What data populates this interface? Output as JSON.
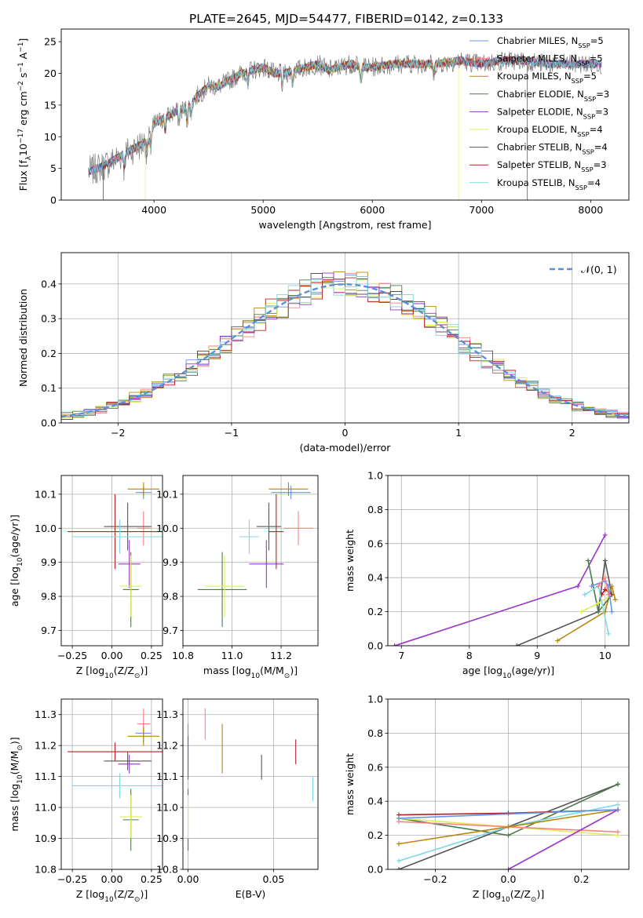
{
  "figure_title": "PLATE=2645, MJD=54477, FIBERID=0142, z=0.133",
  "colors": {
    "Chabrier MILES": "#6495ed",
    "Salpeter MILES": "#ff7f7f",
    "Kroupa MILES": "#b8860b",
    "Chabrier ELODIE": "#4a7a4a",
    "Salpeter ELODIE": "#9932cc",
    "Kroupa ELODIE": "#d9ef5a",
    "Chabrier STELIB": "#555555",
    "Salpeter STELIB": "#b22222",
    "Kroupa STELIB": "#7fd8e6",
    "gaussian": "#5b8fd6"
  },
  "chart_data": [
    {
      "type": "line",
      "title": "PLATE=2645, MJD=54477, FIBERID=0142, z=0.133",
      "xlabel": "wavelength [Angstrom, rest frame]",
      "ylabel": "Flux [f_λ 10^-17 erg cm^-2 s^-1 A^-1]",
      "xlim": [
        3150,
        8350
      ],
      "ylim": [
        0,
        27
      ],
      "xticks": [
        "4000",
        "5000",
        "6000",
        "7000",
        "8000"
      ],
      "yticks": [
        "0",
        "5",
        "10",
        "15",
        "20",
        "25"
      ],
      "legend": [
        "Chabrier MILES, N_SSP=5",
        "Salpeter MILES, N_SSP=5",
        "Kroupa MILES, N_SSP=5",
        "Chabrier ELODIE, N_SSP=3",
        "Salpeter ELODIE, N_SSP=3",
        "Kroupa ELODIE, N_SSP=4",
        "Chabrier STELIB, N_SSP=4",
        "Salpeter STELIB, N_SSP=3",
        "Kroupa STELIB, N_SSP=4"
      ],
      "legend_placement": "right",
      "continuum": {
        "x": [
          3400,
          3550,
          3650,
          3750,
          3850,
          3950,
          4000,
          4100,
          4200,
          4300,
          4400,
          4500,
          4600,
          4700,
          4800,
          4900,
          5000,
          5100,
          5200,
          5300,
          5400,
          5500,
          5600,
          5700,
          5800,
          5900,
          6000,
          6200,
          6400,
          6600,
          6800,
          7000,
          7200,
          7400,
          7600,
          7800,
          8000,
          8100
        ],
        "y": [
          4.5,
          5.5,
          6.5,
          7.5,
          8.5,
          9.5,
          12,
          13,
          14,
          14.5,
          16.5,
          18,
          18,
          19,
          20,
          20.5,
          21,
          20,
          20,
          20.5,
          21,
          21.5,
          20.5,
          21,
          21.5,
          21,
          21,
          21.5,
          21.5,
          21.5,
          22,
          21.5,
          22,
          22,
          21.5,
          21.5,
          21.5,
          21.5
        ]
      }
    },
    {
      "type": "histogram",
      "xlabel": "(data-model)/error",
      "ylabel": "Normed distribution",
      "xlim": [
        -2.5,
        2.5
      ],
      "ylim": [
        0,
        0.49
      ],
      "xticks": [
        "−2",
        "−1",
        "0",
        "1",
        "2"
      ],
      "yticks": [
        "0.0",
        "0.1",
        "0.2",
        "0.3",
        "0.4"
      ],
      "legend": [
        "N(0,1)"
      ],
      "legend_placement": "top-right",
      "bin_width": 0.1,
      "series_order": [
        "Chabrier MILES",
        "Salpeter MILES",
        "Kroupa MILES",
        "Chabrier ELODIE",
        "Salpeter ELODIE",
        "Kroupa ELODIE",
        "Chabrier STELIB",
        "Salpeter STELIB",
        "Kroupa STELIB"
      ]
    },
    {
      "type": "scatter",
      "xlabel": "Z [log10(Z/Z_sun)]",
      "ylabel": "age [log10(age/yr)]",
      "xlim": [
        -0.32,
        0.32
      ],
      "ylim": [
        9.655,
        10.155
      ],
      "xticks": [
        "−0.25",
        "0.00",
        "0.25"
      ],
      "yticks": [
        "9.7",
        "9.8",
        "9.9",
        "10.0",
        "10.1"
      ],
      "points": [
        {
          "series": "Chabrier MILES",
          "x": 0.2,
          "y": 10.105,
          "xerr": 0.05,
          "yerr": 0.02
        },
        {
          "series": "Salpeter MILES",
          "x": 0.2,
          "y": 10.0,
          "xerr": 0.04,
          "yerr": 0.05
        },
        {
          "series": "Kroupa MILES",
          "x": 0.2,
          "y": 10.115,
          "xerr": 0.1,
          "yerr": 0.02
        },
        {
          "series": "Chabrier ELODIE",
          "x": 0.12,
          "y": 9.82,
          "xerr": 0.05,
          "yerr": 0.11
        },
        {
          "series": "Salpeter ELODIE",
          "x": 0.11,
          "y": 9.895,
          "xerr": 0.07,
          "yerr": 0.07
        },
        {
          "series": "Kroupa ELODIE",
          "x": 0.12,
          "y": 9.83,
          "xerr": 0.07,
          "yerr": 0.09
        },
        {
          "series": "Chabrier STELIB",
          "x": 0.1,
          "y": 10.005,
          "xerr": 0.15,
          "yerr": 0.07
        },
        {
          "series": "Salpeter STELIB",
          "x": 0.02,
          "y": 9.99,
          "xerr": 0.3,
          "yerr": 0.11
        },
        {
          "series": "Kroupa STELIB",
          "x": 0.05,
          "y": 9.975,
          "xerr": 0.3,
          "yerr": 0.05
        }
      ]
    },
    {
      "type": "scatter",
      "xlabel": "mass [log10(M/M_sun)]",
      "ylabel": "",
      "xlim": [
        10.8,
        11.35
      ],
      "ylim": [
        9.655,
        10.155
      ],
      "xticks": [
        "10.8",
        "11.0",
        "11.2"
      ],
      "yticks": [
        "9.7",
        "9.8",
        "9.9",
        "10.0",
        "10.1"
      ],
      "points": [
        {
          "series": "Chabrier MILES",
          "x": 11.24,
          "y": 10.105,
          "xerr": 0.08,
          "yerr": 0.02
        },
        {
          "series": "Salpeter MILES",
          "x": 11.27,
          "y": 10.0,
          "xerr": 0.06,
          "yerr": 0.05
        },
        {
          "series": "Kroupa MILES",
          "x": 11.23,
          "y": 10.115,
          "xerr": 0.08,
          "yerr": 0.02
        },
        {
          "series": "Chabrier ELODIE",
          "x": 10.96,
          "y": 9.82,
          "xerr": 0.1,
          "yerr": 0.11
        },
        {
          "series": "Salpeter ELODIE",
          "x": 11.14,
          "y": 9.895,
          "xerr": 0.07,
          "yerr": 0.07
        },
        {
          "series": "Kroupa ELODIE",
          "x": 10.97,
          "y": 9.83,
          "xerr": 0.08,
          "yerr": 0.09
        },
        {
          "series": "Chabrier STELIB",
          "x": 11.15,
          "y": 10.005,
          "xerr": 0.05,
          "yerr": 0.07
        },
        {
          "series": "Salpeter STELIB",
          "x": 11.18,
          "y": 9.99,
          "xerr": 0.03,
          "yerr": 0.11
        },
        {
          "series": "Kroupa STELIB",
          "x": 11.07,
          "y": 9.975,
          "xerr": 0.04,
          "yerr": 0.05
        }
      ]
    },
    {
      "type": "line",
      "xlabel": "age [log10(age/yr)]",
      "ylabel": "mass weight",
      "xlim": [
        6.8,
        10.35
      ],
      "ylim": [
        0,
        1
      ],
      "xticks": [
        "7",
        "8",
        "9",
        "10"
      ],
      "yticks": [
        "0.0",
        "0.2",
        "0.4",
        "0.6",
        "0.8",
        "1.0"
      ],
      "series": [
        {
          "series": "Salpeter ELODIE",
          "x": [
            6.9,
            9.6,
            10.0
          ],
          "y": [
            0.0,
            0.35,
            0.65
          ]
        },
        {
          "series": "Chabrier STELIB",
          "x": [
            8.7,
            9.9,
            10.0,
            10.1
          ],
          "y": [
            0.0,
            0.2,
            0.5,
            0.3
          ]
        },
        {
          "series": "Kroupa MILES",
          "x": [
            9.3,
            10.0,
            10.1,
            10.15
          ],
          "y": [
            0.03,
            0.2,
            0.35,
            0.27
          ]
        },
        {
          "series": "Chabrier ELODIE",
          "x": [
            9.75,
            9.9,
            10.1
          ],
          "y": [
            0.5,
            0.2,
            0.3
          ]
        },
        {
          "series": "Kroupa ELODIE",
          "x": [
            9.65,
            9.9,
            10.1
          ],
          "y": [
            0.2,
            0.25,
            0.3
          ]
        },
        {
          "series": "Salpeter STELIB",
          "x": [
            9.95,
            10.0,
            10.1
          ],
          "y": [
            0.3,
            0.33,
            0.3
          ]
        },
        {
          "series": "Kroupa STELIB",
          "x": [
            9.7,
            9.9,
            10.05
          ],
          "y": [
            0.3,
            0.35,
            0.07
          ]
        },
        {
          "series": "Chabrier MILES",
          "x": [
            9.8,
            10.0,
            10.05,
            10.1
          ],
          "y": [
            0.35,
            0.38,
            0.35,
            0.2
          ]
        },
        {
          "series": "Salpeter MILES",
          "x": [
            9.9,
            10.0,
            10.05
          ],
          "y": [
            0.35,
            0.4,
            0.3
          ]
        }
      ]
    },
    {
      "type": "scatter",
      "xlabel": "Z [log10(Z/Z_sun)]",
      "ylabel": "mass [log10(M/M_sun)]",
      "xlim": [
        -0.32,
        0.32
      ],
      "ylim": [
        10.8,
        11.35
      ],
      "xticks": [
        "−0.25",
        "0.00",
        "0.25"
      ],
      "yticks": [
        "10.8",
        "10.9",
        "11.0",
        "11.1",
        "11.2",
        "11.3"
      ],
      "points": [
        {
          "series": "Chabrier MILES",
          "x": 0.2,
          "y": 11.24,
          "xerr": 0.05,
          "yerr": 0.03
        },
        {
          "series": "Salpeter MILES",
          "x": 0.2,
          "y": 11.27,
          "xerr": 0.04,
          "yerr": 0.05
        },
        {
          "series": "Kroupa MILES",
          "x": 0.2,
          "y": 11.23,
          "xerr": 0.1,
          "yerr": 0.03
        },
        {
          "series": "Chabrier ELODIE",
          "x": 0.12,
          "y": 10.96,
          "xerr": 0.05,
          "yerr": 0.1
        },
        {
          "series": "Salpeter ELODIE",
          "x": 0.11,
          "y": 11.14,
          "xerr": 0.07,
          "yerr": 0.03
        },
        {
          "series": "Kroupa ELODIE",
          "x": 0.12,
          "y": 10.97,
          "xerr": 0.07,
          "yerr": 0.07
        },
        {
          "series": "Chabrier STELIB",
          "x": 0.1,
          "y": 11.15,
          "xerr": 0.15,
          "yerr": 0.03
        },
        {
          "series": "Salpeter STELIB",
          "x": 0.02,
          "y": 11.18,
          "xerr": 0.3,
          "yerr": 0.03
        },
        {
          "series": "Kroupa STELIB",
          "x": 0.05,
          "y": 11.07,
          "xerr": 0.3,
          "yerr": 0.04
        }
      ]
    },
    {
      "type": "scatter",
      "xlabel": "E(B-V)",
      "ylabel": "",
      "xlim": [
        -0.003,
        0.076
      ],
      "ylim": [
        10.8,
        11.35
      ],
      "xticks": [
        "0.00",
        "0.05"
      ],
      "yticks": [
        "10.8",
        "10.9",
        "11.0",
        "11.1",
        "11.2",
        "11.3"
      ],
      "points": [
        {
          "series": "Chabrier MILES",
          "x": 0.0,
          "y": 11.24,
          "yerr": 0.03
        },
        {
          "series": "Salpeter MILES",
          "x": 0.01,
          "y": 11.27,
          "yerr": 0.05
        },
        {
          "series": "Kroupa MILES",
          "x": 0.02,
          "y": 11.19,
          "yerr": 0.08
        },
        {
          "series": "Chabrier ELODIE",
          "x": 0.0,
          "y": 10.96,
          "yerr": 0.1
        },
        {
          "series": "Salpeter ELODIE",
          "x": 0.0,
          "y": 11.16,
          "yerr": 0.07
        },
        {
          "series": "Kroupa ELODIE",
          "x": 0.0,
          "y": 10.97,
          "yerr": 0.07
        },
        {
          "series": "Chabrier STELIB",
          "x": 0.043,
          "y": 11.13,
          "yerr": 0.04
        },
        {
          "series": "Salpeter STELIB",
          "x": 0.063,
          "y": 11.18,
          "yerr": 0.04
        },
        {
          "series": "Kroupa STELIB",
          "x": 0.073,
          "y": 11.06,
          "yerr": 0.04
        }
      ]
    },
    {
      "type": "line",
      "xlabel": "Z [log10(Z/Z_sun)]",
      "ylabel": "mass weight",
      "xlim": [
        -0.33,
        0.33
      ],
      "ylim": [
        0,
        1
      ],
      "xticks": [
        "−0.2",
        "0.0",
        "0.2"
      ],
      "yticks": [
        "0.0",
        "0.2",
        "0.4",
        "0.6",
        "0.8",
        "1.0"
      ],
      "series": [
        {
          "series": "Chabrier STELIB",
          "x": [
            -0.3,
            0.0,
            0.3
          ],
          "y": [
            0.0,
            0.25,
            0.5
          ]
        },
        {
          "series": "Chabrier ELODIE",
          "x": [
            -0.3,
            0.0,
            0.3
          ],
          "y": [
            0.3,
            0.2,
            0.5
          ]
        },
        {
          "series": "Salpeter STELIB",
          "x": [
            -0.3,
            0.0,
            0.3
          ],
          "y": [
            0.32,
            0.33,
            0.35
          ]
        },
        {
          "series": "Kroupa STELIB",
          "x": [
            -0.3,
            0.0,
            0.3
          ],
          "y": [
            0.05,
            0.25,
            0.38
          ]
        },
        {
          "series": "Kroupa ELODIE",
          "x": [
            -0.3,
            0.0,
            0.3
          ],
          "y": [
            0.3,
            0.25,
            0.2
          ]
        },
        {
          "series": "Salpeter MILES",
          "x": [
            -0.3,
            0.0,
            0.3
          ],
          "y": [
            0.28,
            0.25,
            0.22
          ]
        },
        {
          "series": "Kroupa MILES",
          "x": [
            -0.3,
            0.0,
            0.3
          ],
          "y": [
            0.15,
            0.25,
            0.35
          ]
        },
        {
          "series": "Salpeter ELODIE",
          "x": [
            0.0,
            0.3
          ],
          "y": [
            0.0,
            0.35
          ]
        },
        {
          "series": "Chabrier MILES",
          "x": [
            -0.3,
            0.3
          ],
          "y": [
            0.3,
            0.35
          ]
        }
      ]
    }
  ]
}
